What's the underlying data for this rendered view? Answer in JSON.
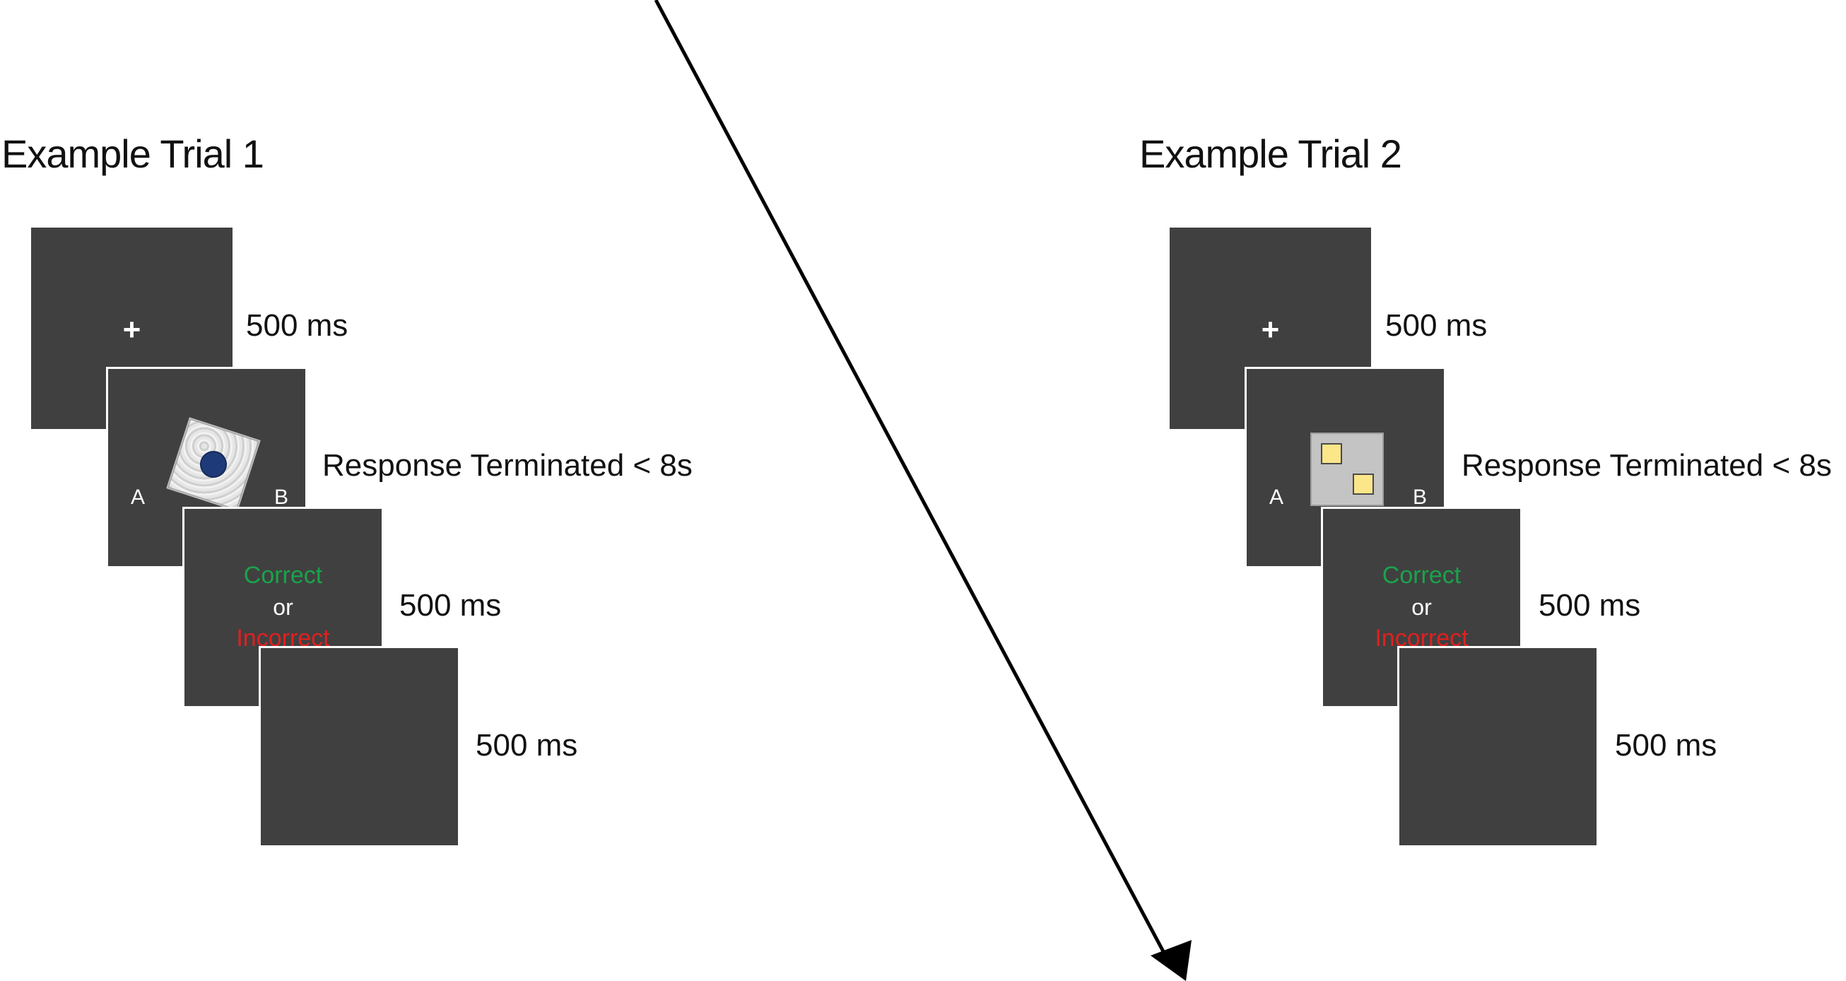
{
  "trials": [
    {
      "title": "Example Trial 1",
      "fixation_symbol": "+",
      "label_a": "A",
      "label_b": "B",
      "stimulus": "textured-square-with-blue-dot",
      "feedback_correct": "Correct",
      "feedback_or": "or",
      "feedback_incorrect": "Incorrect",
      "durations": [
        "500 ms",
        "Response Terminated < 8s",
        "500 ms",
        "500 ms"
      ]
    },
    {
      "title": "Example Trial 2",
      "fixation_symbol": "+",
      "label_a": "A",
      "label_b": "B",
      "stimulus": "gray-square-with-yellow-squares",
      "feedback_correct": "Correct",
      "feedback_or": "or",
      "feedback_incorrect": "Incorrect",
      "durations": [
        "500 ms",
        "Response Terminated < 8s",
        "500 ms",
        "500 ms"
      ]
    }
  ],
  "colors": {
    "screen": "#404040",
    "correct": "#1aa34a",
    "incorrect": "#e02020",
    "arrow": "#000000"
  }
}
